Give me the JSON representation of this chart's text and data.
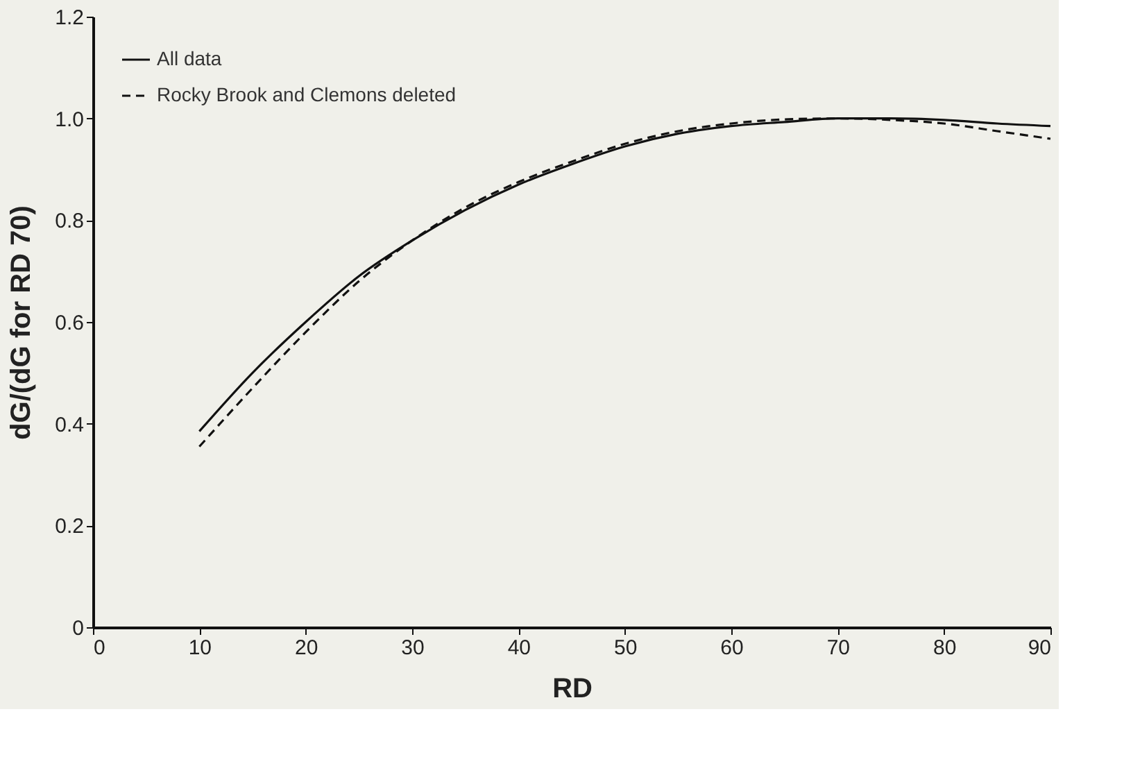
{
  "chart_data": {
    "type": "line",
    "xlabel": "RD",
    "ylabel": "dG/(dG for RD 70)",
    "x": [
      10,
      15,
      20,
      25,
      30,
      35,
      40,
      45,
      50,
      55,
      60,
      65,
      70,
      75,
      80,
      85,
      90
    ],
    "series": [
      {
        "name": "All data",
        "color": "#111111",
        "line_style": "solid",
        "values": [
          0.385,
          0.5,
          0.6,
          0.69,
          0.76,
          0.82,
          0.87,
          0.91,
          0.945,
          0.97,
          0.985,
          0.993,
          1.0,
          1.0,
          0.997,
          0.99,
          0.985
        ]
      },
      {
        "name": "Rocky Brook and Clemons deleted",
        "color": "#111111",
        "line_style": "dashed",
        "values": [
          0.355,
          0.47,
          0.58,
          0.68,
          0.76,
          0.825,
          0.875,
          0.915,
          0.95,
          0.975,
          0.99,
          0.998,
          1.0,
          0.997,
          0.99,
          0.975,
          0.96
        ]
      }
    ],
    "xlim": [
      0,
      90
    ],
    "xticks": [
      0,
      10,
      20,
      30,
      40,
      50,
      60,
      70,
      80,
      90
    ],
    "ylim": [
      0,
      1.2
    ],
    "yticks": [
      0,
      0.2,
      0.4,
      0.6,
      0.8,
      {
        "value": 1,
        "label": "1.0"
      },
      {
        "value": 1.2,
        "label": "1.2"
      }
    ],
    "grid": false,
    "legend": "top left",
    "marker": "none"
  }
}
